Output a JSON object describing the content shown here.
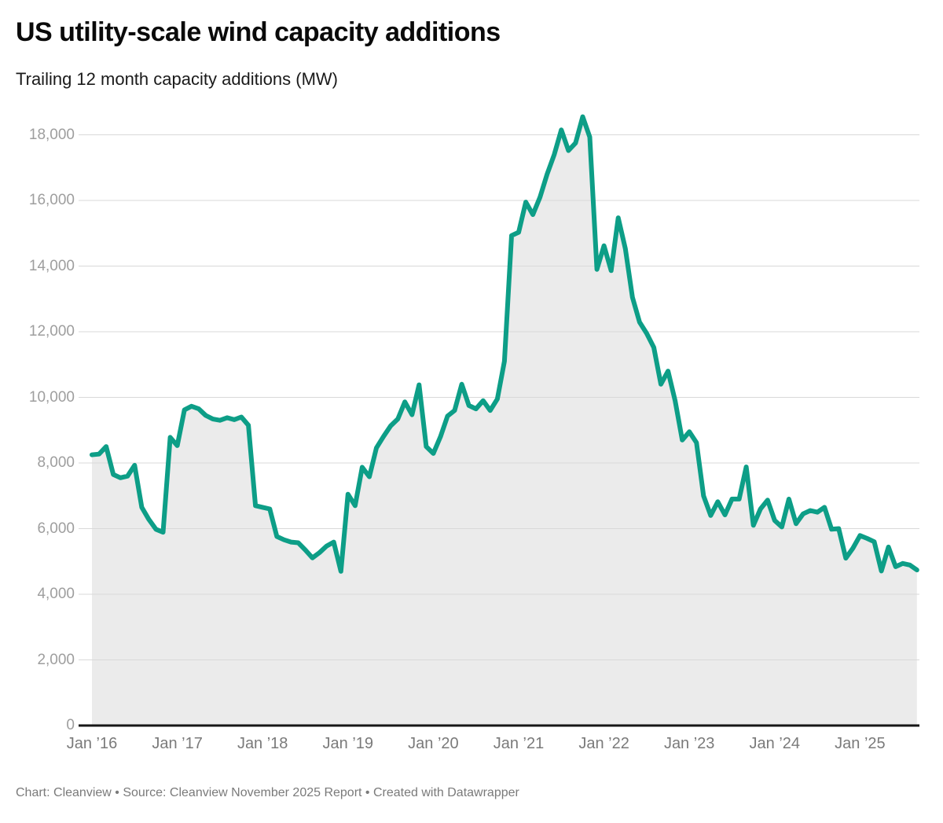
{
  "header": {
    "title": "US utility-scale wind capacity additions",
    "subtitle": "Trailing 12 month capacity additions (MW)"
  },
  "footer": {
    "text": "Chart: Cleanview • Source: Cleanview November 2025 Report • Created with Datawrapper"
  },
  "chart_data": {
    "type": "area",
    "title": "US utility-scale wind capacity additions",
    "subtitle": "Trailing 12 month capacity additions (MW)",
    "unit": "MW",
    "x_start_month": "2016-01",
    "x_end_month": "2025-09",
    "x_tick_labels": [
      "Jan ’16",
      "Jan ’17",
      "Jan ’18",
      "Jan ’19",
      "Jan ’20",
      "Jan ’21",
      "Jan ’22",
      "Jan ’23",
      "Jan ’24",
      "Jan ’25"
    ],
    "y_ticks": [
      0,
      2000,
      4000,
      6000,
      8000,
      10000,
      12000,
      14000,
      16000,
      18000
    ],
    "ylim": [
      0,
      18700
    ],
    "grid": "horizontal",
    "legend": "none",
    "line_color": "#0d9e87",
    "area_color": "#ebebeb",
    "grid_color": "#d9d9d9",
    "baseline_color": "#161616",
    "series": [
      {
        "name": "Trailing 12 month capacity additions (MW)",
        "frequency": "monthly",
        "values": [
          8250,
          8270,
          8500,
          7650,
          7550,
          7600,
          7930,
          6650,
          6280,
          5980,
          5890,
          8780,
          8530,
          9620,
          9730,
          9650,
          9450,
          9340,
          9300,
          9380,
          9320,
          9400,
          9150,
          6700,
          6650,
          6600,
          5760,
          5660,
          5590,
          5570,
          5350,
          5110,
          5270,
          5470,
          5590,
          4700,
          7050,
          6700,
          7870,
          7580,
          8460,
          8810,
          9130,
          9340,
          9860,
          9470,
          10380,
          8500,
          8290,
          8800,
          9430,
          9600,
          10400,
          9750,
          9650,
          9900,
          9600,
          9950,
          11100,
          14930,
          15030,
          15950,
          15570,
          16100,
          16800,
          17400,
          18150,
          17520,
          17750,
          18550,
          17930,
          13900,
          14620,
          13860,
          15470,
          14530,
          13050,
          12290,
          11950,
          11520,
          10400,
          10800,
          9900,
          8700,
          8950,
          8620,
          7000,
          6400,
          6820,
          6420,
          6900,
          6900,
          7880,
          6100,
          6600,
          6870,
          6250,
          6050,
          6900,
          6150,
          6450,
          6550,
          6500,
          6650,
          5980,
          6000,
          5100,
          5400,
          5790,
          5700,
          5600,
          4710,
          5440,
          4840,
          4940,
          4890,
          4740
        ]
      }
    ]
  }
}
